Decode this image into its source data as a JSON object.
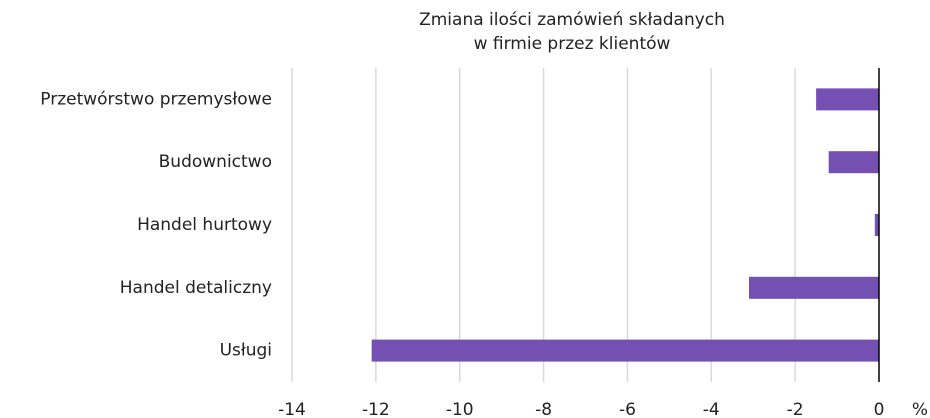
{
  "chart_data": {
    "type": "hbar",
    "title": [
      "Zmiana ilości zamówień składanych",
      "w firmie przez klientów"
    ],
    "categories": [
      "Przetwórstwo przemysłowe",
      "Budownictwo",
      "Handel hurtowy",
      "Handel detaliczny",
      "Usługi"
    ],
    "values": [
      -1.5,
      -1.2,
      -0.1,
      -3.1,
      -12.1
    ],
    "color": "#7350b2",
    "xlim": [
      -14,
      0
    ],
    "xticks": [
      -14,
      -12,
      -10,
      -8,
      -6,
      -4,
      -2,
      0
    ],
    "xlabel": "%",
    "grid": true
  }
}
